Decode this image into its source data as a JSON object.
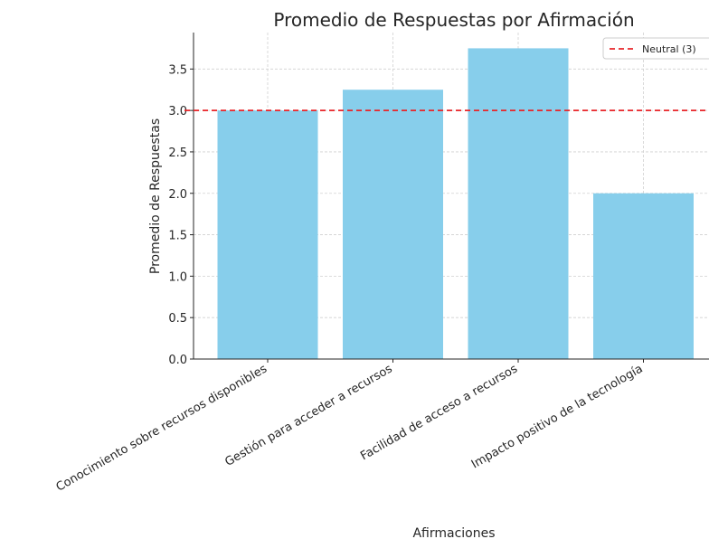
{
  "chart_data": {
    "type": "bar",
    "title": "Promedio de Respuestas por Afirmación",
    "xlabel": "Afirmaciones",
    "ylabel": "Promedio de Respuestas",
    "categories": [
      "Conocimiento sobre recursos disponibles",
      "Gestión para acceder a recursos",
      "Facilidad de acceso a recursos",
      "Impacto positivo de la tecnología"
    ],
    "values": [
      3.0,
      3.25,
      3.75,
      2.0
    ],
    "ylim": [
      0,
      3.94
    ],
    "yticks": [
      "0.0",
      "0.5",
      "1.0",
      "1.5",
      "2.0",
      "2.5",
      "3.0",
      "3.5"
    ],
    "grid": true,
    "bar_color": "#87ceeb",
    "reference_line": {
      "value": 3,
      "label": "Neutral (3)",
      "color": "#e8262a",
      "style": "dashed"
    },
    "legend_position": "top-right"
  }
}
